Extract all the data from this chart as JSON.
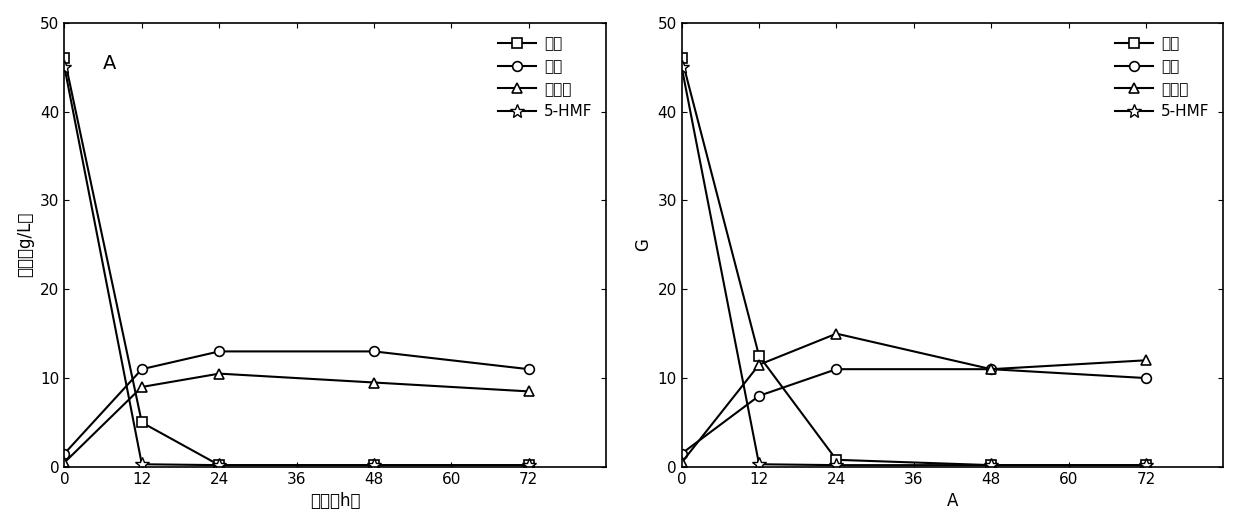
{
  "time_points": [
    0,
    12,
    24,
    48,
    72
  ],
  "left": {
    "panel_label": "A",
    "xlabel": "时间（h）",
    "ylabel": "浓度（g/L）",
    "xylose": [
      46.0,
      5.0,
      0.2,
      0.2,
      0.2
    ],
    "ethanol": [
      1.5,
      11.0,
      13.0,
      13.0,
      11.0
    ],
    "xylitol": [
      0.5,
      9.0,
      10.5,
      9.5,
      8.5
    ],
    "hmf": [
      45.0,
      0.3,
      0.2,
      0.2,
      0.2
    ]
  },
  "right": {
    "panel_label": "",
    "xlabel": "A",
    "ylabel": "G",
    "xylose": [
      46.0,
      12.5,
      0.8,
      0.2,
      0.2
    ],
    "ethanol": [
      1.5,
      8.0,
      11.0,
      11.0,
      10.0
    ],
    "xylitol": [
      0.5,
      11.5,
      15.0,
      11.0,
      12.0
    ],
    "hmf": [
      45.0,
      0.3,
      0.2,
      0.2,
      0.2
    ]
  },
  "legend_labels": [
    "木糖",
    "乙醇",
    "木糖醇",
    "5-HMF"
  ],
  "ylim": [
    0,
    50
  ],
  "xlim": [
    0,
    84
  ],
  "xticks": [
    0,
    12,
    24,
    36,
    48,
    60,
    72
  ],
  "yticks": [
    0,
    10,
    20,
    30,
    40,
    50
  ],
  "line_color": "#000000",
  "marker_xylose": "s",
  "marker_ethanol": "o",
  "marker_xylitol": "^",
  "marker_hmf": "*",
  "markersize": 7,
  "hmf_markersize": 10,
  "linewidth": 1.5,
  "fontsize_label": 12,
  "fontsize_tick": 11,
  "fontsize_legend": 11,
  "fontsize_panel": 14
}
